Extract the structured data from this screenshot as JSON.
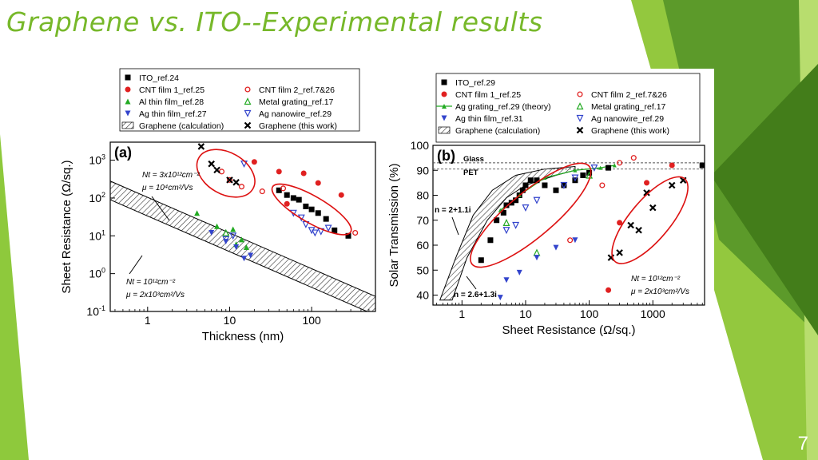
{
  "slide": {
    "title": "Graphene vs. ITO--Experimental results",
    "page_number": "7",
    "colors": {
      "title": "#77b82a",
      "accent_dark": "#4e8a1e",
      "accent_light": "#93c83e"
    }
  },
  "chart_data": [
    {
      "type": "scatter",
      "panel_label": "(a)",
      "xlabel": "Thickness (nm)",
      "ylabel": "Sheet Resistance (Ω/sq.)",
      "xscale": "log",
      "yscale": "log",
      "xlim": [
        0.35,
        600
      ],
      "ylim": [
        0.1,
        3000
      ],
      "xticks": [
        {
          "v": 1,
          "label": "1"
        },
        {
          "v": 10,
          "label": "10"
        },
        {
          "v": 100,
          "label": "100"
        }
      ],
      "yticks": [
        {
          "v": 0.1,
          "label": "10-1",
          "base": "10",
          "exp": "-1"
        },
        {
          "v": 1,
          "label": "100",
          "base": "10",
          "exp": "0"
        },
        {
          "v": 10,
          "label": "101",
          "base": "10",
          "exp": "1"
        },
        {
          "v": 100,
          "label": "102",
          "base": "10",
          "exp": "2"
        },
        {
          "v": 1000,
          "label": "103",
          "base": "10",
          "exp": "3"
        }
      ],
      "annotations": {
        "upper": {
          "line1": "Nt = 3x10¹²cm⁻²",
          "line2": "μ = 10⁴cm²/Vs"
        },
        "lower": {
          "line1": "Nt = 10¹²cm⁻²",
          "line2": "μ = 2x10³cm²/Vs"
        }
      },
      "legend": {
        "placement": "above",
        "entries": [
          {
            "label": "ITO_ref.24",
            "marker": "square",
            "color": "#000000"
          },
          {
            "label": "CNT film 1_ref.25",
            "marker": "circle",
            "color": "#e02020"
          },
          {
            "label": "CNT film 2_ref.7&26",
            "marker": "circle-open",
            "color": "#e02020"
          },
          {
            "label": "Al thin film_ref.28",
            "marker": "triangle",
            "color": "#22aa22"
          },
          {
            "label": "Metal grating_ref.17",
            "marker": "triangle-open",
            "color": "#22aa22"
          },
          {
            "label": "Ag thin film_ref.27",
            "marker": "triangle-down",
            "color": "#3344cc"
          },
          {
            "label": "Ag nanowire_ref.29",
            "marker": "triangle-down-open",
            "color": "#3344cc"
          },
          {
            "label": "Graphene (calculation)",
            "marker": "hatch",
            "color": "#000000"
          },
          {
            "label": "Graphene (this work)",
            "marker": "x",
            "color": "#000000"
          }
        ]
      },
      "band": {
        "upper": [
          [
            0.35,
            280
          ],
          [
            600,
            0.25
          ]
        ],
        "lower": [
          [
            0.35,
            90
          ],
          [
            600,
            0.08
          ]
        ]
      },
      "series": [
        {
          "name": "ITO_ref.24",
          "marker": "square",
          "color": "#000000",
          "points": [
            [
              40,
              160
            ],
            [
              50,
              120
            ],
            [
              60,
              100
            ],
            [
              70,
              90
            ],
            [
              85,
              60
            ],
            [
              100,
              50
            ],
            [
              120,
              40
            ],
            [
              150,
              28
            ],
            [
              190,
              14
            ],
            [
              280,
              10
            ]
          ]
        },
        {
          "name": "CNT film 1_ref.25",
          "marker": "circle",
          "color": "#e02020",
          "points": [
            [
              20,
              900
            ],
            [
              40,
              500
            ],
            [
              80,
              450
            ],
            [
              120,
              250
            ],
            [
              230,
              120
            ],
            [
              50,
              70
            ]
          ]
        },
        {
          "name": "CNT film 2_ref.7&26",
          "marker": "circle-open",
          "color": "#e02020",
          "points": [
            [
              8,
              500
            ],
            [
              10,
              300
            ],
            [
              14,
              200
            ],
            [
              25,
              150
            ],
            [
              45,
              180
            ],
            [
              340,
              12
            ]
          ]
        },
        {
          "name": "Al thin film_ref.28",
          "marker": "triangle",
          "color": "#22aa22",
          "points": [
            [
              4,
              40
            ],
            [
              7,
              18
            ],
            [
              11,
              15
            ],
            [
              14,
              8
            ],
            [
              16,
              5
            ],
            [
              12,
              6
            ]
          ]
        },
        {
          "name": "Metal grating_ref.17",
          "marker": "triangle-open",
          "color": "#22aa22",
          "points": [
            [
              9,
              12
            ]
          ]
        },
        {
          "name": "Ag thin film_ref.27",
          "marker": "triangle-down",
          "color": "#3344cc",
          "points": [
            [
              6,
              12
            ],
            [
              9,
              7
            ],
            [
              12,
              5
            ],
            [
              15,
              2.5
            ],
            [
              18,
              3
            ]
          ]
        },
        {
          "name": "Ag nanowire_ref.29",
          "marker": "triangle-down-open",
          "color": "#3344cc",
          "points": [
            [
              15,
              800
            ],
            [
              60,
              40
            ],
            [
              75,
              30
            ],
            [
              85,
              20
            ],
            [
              100,
              14
            ],
            [
              110,
              12
            ],
            [
              130,
              13
            ],
            [
              160,
              16
            ],
            [
              9,
              8
            ],
            [
              11,
              10
            ]
          ]
        },
        {
          "name": "Graphene (this work)",
          "marker": "x",
          "color": "#000000",
          "points": [
            [
              4.5,
              2300
            ],
            [
              6,
              800
            ],
            [
              7,
              550
            ],
            [
              10,
              300
            ],
            [
              12,
              260
            ]
          ]
        }
      ],
      "highlights": [
        {
          "cx": 9,
          "cy": 450,
          "rx_dec": 0.38,
          "ry_dec": 0.55,
          "angle": 30
        },
        {
          "cx": 100,
          "cy": 50,
          "rx_dec": 0.55,
          "ry_dec": 0.35,
          "angle": 30
        }
      ]
    },
    {
      "type": "scatter",
      "panel_label": "(b)",
      "xlabel": "Sheet Resistance (Ω/sq.)",
      "ylabel": "Solar Transmission (%)",
      "xscale": "log",
      "yscale": "linear",
      "xlim": [
        0.35,
        6500
      ],
      "ylim": [
        36,
        100
      ],
      "xticks": [
        {
          "v": 1,
          "label": "1"
        },
        {
          "v": 10,
          "label": "10"
        },
        {
          "v": 100,
          "label": "100"
        },
        {
          "v": 1000,
          "label": "1000"
        }
      ],
      "yticks": [
        {
          "v": 40,
          "label": "40"
        },
        {
          "v": 50,
          "label": "50"
        },
        {
          "v": 60,
          "label": "60"
        },
        {
          "v": 70,
          "label": "70"
        },
        {
          "v": 80,
          "label": "80"
        },
        {
          "v": 90,
          "label": "90"
        },
        {
          "v": 100,
          "label": "100"
        }
      ],
      "reference_lines": [
        {
          "label": "Glass",
          "y": 93
        },
        {
          "label": "PET",
          "y": 90.5
        }
      ],
      "annotations": {
        "n1": "n = 2+1.1i",
        "n2": "n = 2.6+1.3i",
        "upper": {
          "line1": "Nt = 10¹²cm⁻²",
          "line2": "μ = 2x10³cm²/Vs"
        }
      },
      "legend": {
        "placement": "above",
        "entries": [
          {
            "label": "ITO_ref.29",
            "marker": "square",
            "color": "#000000"
          },
          {
            "label": "CNT film 1_ref.25",
            "marker": "circle",
            "color": "#e02020"
          },
          {
            "label": "CNT film 2_ref.7&26",
            "marker": "circle-open",
            "color": "#e02020"
          },
          {
            "label": "Ag grating_ref.29 (theory)",
            "marker": "line-triangle",
            "color": "#22aa22"
          },
          {
            "label": "Metal grating_ref.17",
            "marker": "triangle-open",
            "color": "#22aa22"
          },
          {
            "label": "Ag thin film_ref.31",
            "marker": "triangle-down",
            "color": "#3344cc"
          },
          {
            "label": "Ag nanowire_ref.29",
            "marker": "triangle-down-open",
            "color": "#3344cc"
          },
          {
            "label": "Graphene (calculation)",
            "marker": "hatch",
            "color": "#000000"
          },
          {
            "label": "Graphene (this work)",
            "marker": "x",
            "color": "#000000"
          }
        ]
      },
      "band": {
        "upper": [
          [
            0.45,
            38
          ],
          [
            0.8,
            55
          ],
          [
            1.5,
            72
          ],
          [
            3,
            82
          ],
          [
            7,
            88
          ],
          [
            20,
            90.5
          ],
          [
            60,
            91.5
          ]
        ],
        "lower": [
          [
            0.7,
            38
          ],
          [
            1.2,
            55
          ],
          [
            2.5,
            70
          ],
          [
            5,
            79
          ],
          [
            10,
            84
          ],
          [
            30,
            88
          ],
          [
            60,
            90
          ]
        ]
      },
      "series": [
        {
          "name": "ITO_ref.29",
          "marker": "square",
          "color": "#000000",
          "points": [
            [
              2,
              54
            ],
            [
              2.8,
              62
            ],
            [
              3.5,
              70
            ],
            [
              4.5,
              73
            ],
            [
              5,
              76
            ],
            [
              6,
              77
            ],
            [
              7,
              78
            ],
            [
              8,
              80
            ],
            [
              9,
              82
            ],
            [
              10,
              84
            ],
            [
              12,
              86
            ],
            [
              15,
              86
            ],
            [
              20,
              84
            ],
            [
              30,
              82
            ],
            [
              40,
              84
            ],
            [
              60,
              86
            ],
            [
              80,
              88
            ],
            [
              100,
              89
            ],
            [
              200,
              91
            ],
            [
              6000,
              92
            ]
          ]
        },
        {
          "name": "CNT film 1_ref.25",
          "marker": "circle",
          "color": "#e02020",
          "points": [
            [
              200,
              42
            ],
            [
              300,
              69
            ],
            [
              800,
              85
            ],
            [
              2000,
              92
            ]
          ]
        },
        {
          "name": "CNT film 2_ref.7&26",
          "marker": "circle-open",
          "color": "#e02020",
          "points": [
            [
              50,
              62
            ],
            [
              160,
              84
            ],
            [
              300,
              93
            ],
            [
              500,
              95
            ]
          ]
        },
        {
          "name": "Ag grating_ref.29 (theory)",
          "marker": "line-triangle",
          "color": "#22aa22",
          "points": [
            [
              4,
              74
            ],
            [
              8,
              80
            ],
            [
              20,
              87
            ],
            [
              60,
              90
            ],
            [
              150,
              91
            ],
            [
              250,
              92
            ]
          ]
        },
        {
          "name": "Metal grating_ref.17",
          "marker": "triangle-open",
          "color": "#22aa22",
          "points": [
            [
              5,
              69
            ],
            [
              15,
              57
            ],
            [
              100,
              88
            ]
          ]
        },
        {
          "name": "Ag thin film_ref.31",
          "marker": "triangle-down",
          "color": "#3344cc",
          "points": [
            [
              4,
              39
            ],
            [
              5,
              46
            ],
            [
              8,
              49
            ],
            [
              15,
              55
            ],
            [
              30,
              59
            ],
            [
              60,
              62
            ]
          ]
        },
        {
          "name": "Ag nanowire_ref.29",
          "marker": "triangle-down-open",
          "color": "#3344cc",
          "points": [
            [
              5,
              66
            ],
            [
              7,
              68
            ],
            [
              10,
              75
            ],
            [
              15,
              78
            ],
            [
              40,
              84
            ],
            [
              60,
              87
            ],
            [
              120,
              91
            ]
          ]
        },
        {
          "name": "Graphene (this work)",
          "marker": "x",
          "color": "#000000",
          "points": [
            [
              220,
              55
            ],
            [
              300,
              57
            ],
            [
              450,
              68
            ],
            [
              600,
              66
            ],
            [
              800,
              81
            ],
            [
              1000,
              75
            ],
            [
              2000,
              84
            ],
            [
              3000,
              86
            ]
          ]
        }
      ],
      "highlights": [
        {
          "cx": 12,
          "cy": 72,
          "rx_dec": 1.2,
          "ry_val": 9,
          "angle": -40
        },
        {
          "cx": 900,
          "cy": 70,
          "rx_dec": 0.85,
          "ry_val": 8,
          "angle": -50
        }
      ]
    }
  ]
}
